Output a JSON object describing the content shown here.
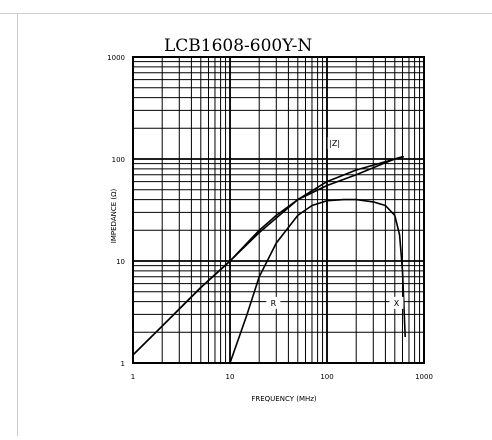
{
  "chart_data": {
    "type": "line",
    "title": "LCB1608-600Y-N",
    "xlabel": "FREQUENCY (MHz)",
    "ylabel": "IMPEDANCE (Ω)",
    "x_scale": "log",
    "y_scale": "log",
    "xlim": [
      1,
      1000
    ],
    "ylim": [
      1,
      1000
    ],
    "x_ticks": [
      "1",
      "10",
      "100",
      "1000"
    ],
    "y_ticks": [
      "1",
      "10",
      "100",
      "1000"
    ],
    "grid": true,
    "series": [
      {
        "name": "|Z|",
        "label_at": [
          120,
          140
        ],
        "x": [
          1,
          2,
          5,
          10,
          20,
          50,
          100,
          200,
          500,
          600
        ],
        "y": [
          1.2,
          2.3,
          5.5,
          10,
          19,
          40,
          60,
          78,
          100,
          105
        ]
      },
      {
        "name": "R",
        "label_at": [
          28,
          3.8
        ],
        "x": [
          10,
          15,
          20,
          30,
          50,
          70,
          100,
          150,
          200,
          300,
          400,
          500,
          560,
          600,
          640
        ],
        "y": [
          1.0,
          3.0,
          7.0,
          15,
          28,
          35,
          39,
          40,
          40,
          38,
          35,
          28,
          18,
          8,
          1.8
        ]
      },
      {
        "name": "X",
        "label_at": [
          520,
          3.8
        ],
        "x": [
          1,
          2,
          5,
          10,
          20,
          30,
          50,
          100,
          200,
          300,
          400,
          500,
          600,
          620
        ],
        "y": [
          1.2,
          2.3,
          5.5,
          10,
          20,
          28,
          40,
          55,
          70,
          82,
          92,
          100,
          105,
          105
        ]
      }
    ]
  }
}
